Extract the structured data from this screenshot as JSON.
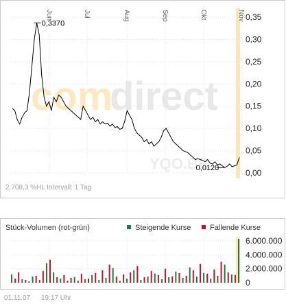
{
  "price_chart": {
    "watermark_brand_com": "com",
    "watermark_brand_direct": "direct",
    "watermark_symbol": "YQO.BE",
    "max_label": "0,3370",
    "min_label": "0,0120",
    "footer": "2.708,3 %HL  Intervall: 1 Tag"
  },
  "volume_chart": {
    "title": "Stück-Volumen (rot-grün)",
    "legend_up": "Steigende Kurse",
    "legend_down": "Fallende Kurse"
  },
  "footer": {
    "date": "01.11.07",
    "time": "19:17 Uhr"
  },
  "colors": {
    "line": "#000000",
    "rising": "#1f7a3a",
    "falling": "#c8102e",
    "axis_band": "#fbe6b6",
    "watermark": "#e8e8e8"
  },
  "chart_data": [
    {
      "type": "line",
      "title": "",
      "months": [
        "Jun",
        "Jul",
        "Aug",
        "Sep",
        "Okt",
        "Nov"
      ],
      "yticks": [
        "0,35",
        "0,30",
        "0,25",
        "0,20",
        "0,15",
        "0,10",
        "0,05",
        "0,00"
      ],
      "ylim": [
        0,
        0.35
      ],
      "series": [
        {
          "values": [
            0.145,
            0.14,
            0.12,
            0.11,
            0.125,
            0.135,
            0.14,
            0.18,
            0.24,
            0.3,
            0.337,
            0.31,
            0.22,
            0.17,
            0.15,
            0.16,
            0.14,
            0.17,
            0.16,
            0.175,
            0.17,
            0.16,
            0.15,
            0.145,
            0.14,
            0.135,
            0.13,
            0.125,
            0.12,
            0.15,
            0.14,
            0.13,
            0.12,
            0.125,
            0.115,
            0.12,
            0.11,
            0.115,
            0.11,
            0.112,
            0.105,
            0.11,
            0.102,
            0.104,
            0.098,
            0.1,
            0.115,
            0.14,
            0.13,
            0.12,
            0.1,
            0.09,
            0.085,
            0.08,
            0.07,
            0.075,
            0.065,
            0.07,
            0.06,
            0.065,
            0.07,
            0.08,
            0.095,
            0.1,
            0.09,
            0.08,
            0.07,
            0.065,
            0.06,
            0.055,
            0.05,
            0.048,
            0.045,
            0.04,
            0.035,
            0.03,
            0.032,
            0.03,
            0.028,
            0.025,
            0.03,
            0.022,
            0.02,
            0.025,
            0.018,
            0.02,
            0.016,
            0.012,
            0.015,
            0.02,
            0.014,
            0.016,
            0.018,
            0.035
          ]
        }
      ]
    },
    {
      "type": "bar",
      "title": "Stück-Volumen (rot-grün)",
      "yticks": [
        "6.000.000",
        "4.000.000",
        "2.000.000",
        "0"
      ],
      "ylim": [
        0,
        6500000
      ],
      "series": [
        {
          "name": "Steigende Kurse",
          "values": [
            1200000,
            300000,
            0,
            500000,
            0,
            200000,
            900000,
            0,
            400000,
            0,
            2800000,
            0,
            1500000,
            0,
            600000,
            0,
            300000,
            0,
            800000,
            0,
            0,
            500000,
            0,
            1100000,
            0,
            400000,
            0,
            700000,
            0,
            2100000,
            0,
            300000,
            0,
            600000,
            0,
            1800000,
            0,
            400000,
            0,
            900000,
            0,
            1300000,
            0,
            500000,
            0,
            800000,
            0,
            1600000,
            0,
            700000,
            0,
            2200000,
            0,
            900000,
            0,
            1400000,
            0,
            600000,
            0,
            1000000,
            0,
            2600000,
            0,
            1200000,
            0,
            6300000
          ]
        },
        {
          "name": "Fallende Kurse",
          "values": [
            0,
            600000,
            1500000,
            0,
            400000,
            0,
            0,
            1000000,
            0,
            1700000,
            0,
            3300000,
            0,
            800000,
            0,
            1100000,
            0,
            700000,
            0,
            300000,
            1300000,
            0,
            600000,
            0,
            1400000,
            0,
            1800000,
            0,
            2600000,
            0,
            900000,
            0,
            1200000,
            0,
            1500000,
            0,
            2400000,
            0,
            800000,
            0,
            1700000,
            0,
            1100000,
            0,
            2000000,
            0,
            900000,
            0,
            1400000,
            0,
            1000000,
            0,
            1800000,
            0,
            2700000,
            0,
            1300000,
            0,
            1900000,
            0,
            3000000,
            0,
            1500000,
            0,
            1100000,
            0
          ]
        }
      ]
    }
  ]
}
